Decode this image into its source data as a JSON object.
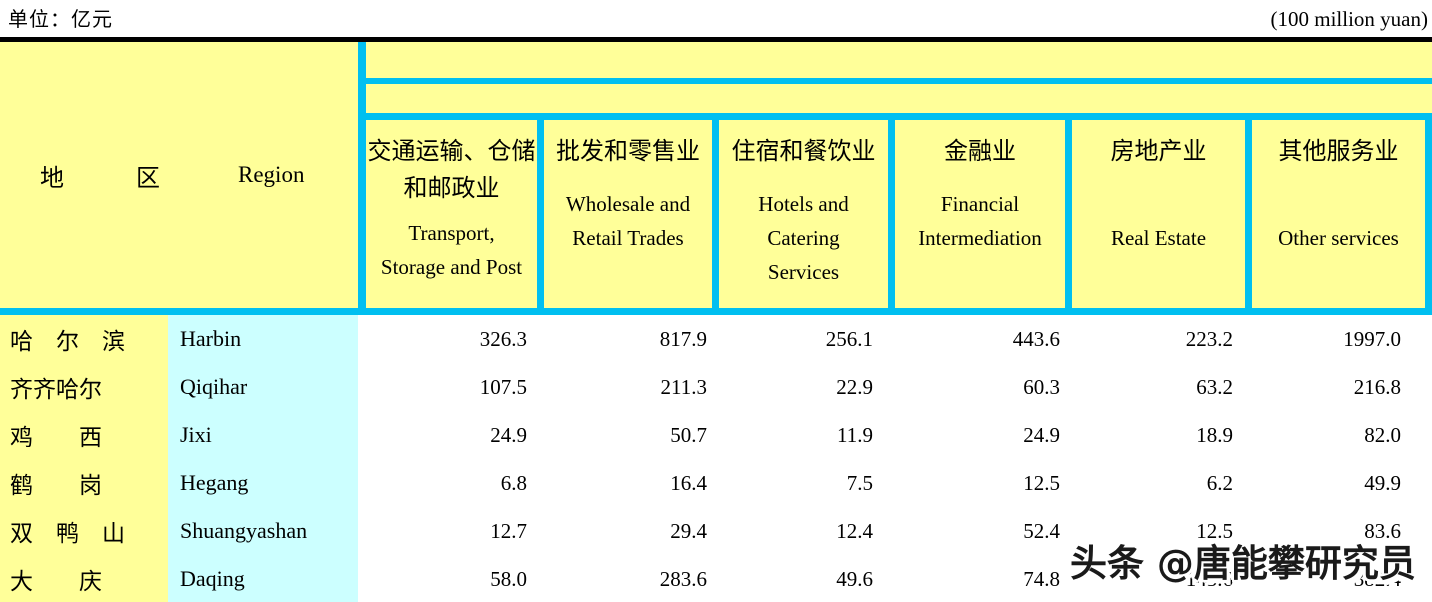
{
  "header": {
    "unit_cn": "单位：亿元",
    "unit_en": "(100 million yuan)"
  },
  "table": {
    "region_header": {
      "cn": "地　　　区",
      "en": "Region"
    },
    "columns": [
      {
        "cn": [
          "交通运输、仓储",
          "和邮政业"
        ],
        "en": [
          "Transport,",
          "Storage and Post"
        ]
      },
      {
        "cn": [
          "批发和零售业"
        ],
        "en": [
          "Wholesale and",
          "Retail Trades"
        ]
      },
      {
        "cn": [
          "住宿和餐饮业"
        ],
        "en": [
          "Hotels and",
          "Catering",
          "Services"
        ]
      },
      {
        "cn": [
          "金融业"
        ],
        "en": [
          "Financial",
          "Intermediation"
        ]
      },
      {
        "cn": [
          "房地产业"
        ],
        "en": [
          "Real Estate"
        ]
      },
      {
        "cn": [
          "其他服务业"
        ],
        "en": [
          "Other services"
        ]
      }
    ],
    "rows": [
      {
        "cn": "哈　尔　滨",
        "en": "Harbin",
        "values": [
          "326.3",
          "817.9",
          "256.1",
          "443.6",
          "223.2",
          "1997.0"
        ]
      },
      {
        "cn": "齐齐哈尔",
        "en": "Qiqihar",
        "values": [
          "107.5",
          "211.3",
          "22.9",
          "60.3",
          "63.2",
          "216.8"
        ]
      },
      {
        "cn": "鸡　　西",
        "en": "Jixi",
        "values": [
          "24.9",
          "50.7",
          "11.9",
          "24.9",
          "18.9",
          "82.0"
        ]
      },
      {
        "cn": "鹤　　岗",
        "en": "Hegang",
        "values": [
          "6.8",
          "16.4",
          "7.5",
          "12.5",
          "6.2",
          "49.9"
        ]
      },
      {
        "cn": "双　鸭　山",
        "en": "Shuangyashan",
        "values": [
          "12.7",
          "29.4",
          "12.4",
          "52.4",
          "12.5",
          "83.6"
        ]
      },
      {
        "cn": "大　　庆",
        "en": "Daqing",
        "values": [
          "58.0",
          "283.6",
          "49.6",
          "74.8",
          "143.6",
          "382.4"
        ]
      }
    ]
  },
  "watermark": {
    "text": "头条 @唐能攀研究员"
  },
  "colors": {
    "header_bg": "#ffff99",
    "grid_line": "#00bff0",
    "name_cell_bg": "#ccffff",
    "top_rule": "#000000"
  }
}
